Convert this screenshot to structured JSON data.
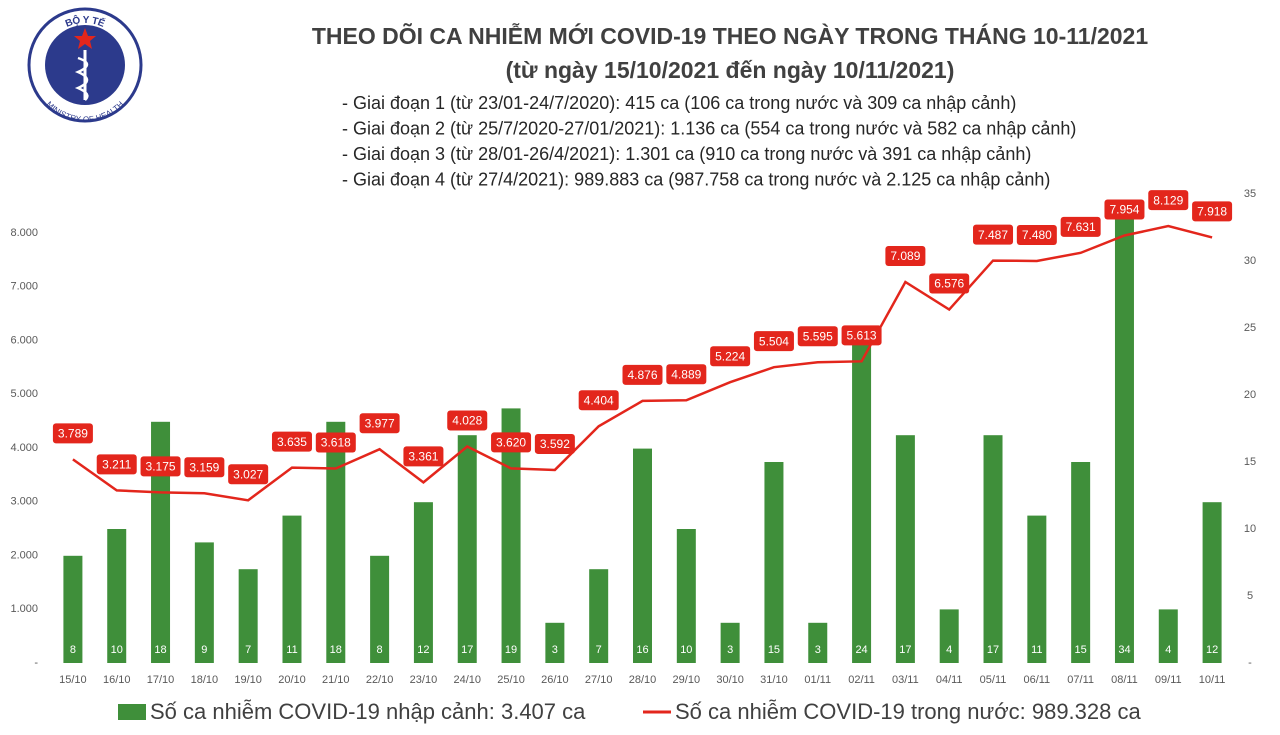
{
  "logo": {
    "top_text": "BỘ Y TẾ",
    "bottom_text": "MINISTRY OF HEALTH"
  },
  "chart_data": {
    "type": "combo",
    "title": "THEO DÕI CA NHIỄM MỚI COVID-19 THEO NGÀY TRONG THÁNG 10-11/2021",
    "subtitle": "(từ ngày 15/10/2021 đến ngày 10/11/2021)",
    "notes": [
      "- Giai đoạn 1 (từ 23/01-24/7/2020): 415 ca (106 ca trong nước và 309 ca nhập cảnh)",
      "- Giai đoạn 2 (từ 25/7/2020-27/01/2021): 1.136 ca (554 ca trong nước và 582 ca nhập cảnh)",
      "- Giai đoạn 3 (từ 28/01-26/4/2021): 1.301 ca (910 ca trong nước và 391 ca nhập cảnh)",
      "- Giai đoạn 4 (từ 27/4/2021): 989.883 ca (987.758 ca trong nước và 2.125 ca nhập cảnh)"
    ],
    "categories": [
      "15/10",
      "16/10",
      "17/10",
      "18/10",
      "19/10",
      "20/10",
      "21/10",
      "22/10",
      "23/10",
      "24/10",
      "25/10",
      "26/10",
      "27/10",
      "28/10",
      "29/10",
      "30/10",
      "31/10",
      "01/11",
      "02/11",
      "03/11",
      "04/11",
      "05/11",
      "06/11",
      "07/11",
      "08/11",
      "09/11",
      "10/11"
    ],
    "series": [
      {
        "name": "Số ca nhiễm COVID-19 nhập cảnh: 3.407 ca",
        "type": "bar",
        "axis": "y2",
        "color": "#3f8f3a",
        "values": [
          8,
          10,
          18,
          9,
          7,
          11,
          18,
          8,
          12,
          17,
          19,
          3,
          7,
          16,
          10,
          3,
          15,
          3,
          24,
          17,
          4,
          17,
          11,
          15,
          34,
          4,
          12
        ]
      },
      {
        "name": "Số ca nhiễm COVID-19 trong nước: 989.328 ca",
        "type": "line",
        "color": "#e3261c",
        "values": [
          3789,
          3211,
          3175,
          3159,
          3027,
          3635,
          3618,
          3977,
          3361,
          4028,
          3620,
          3592,
          4404,
          4876,
          4889,
          5224,
          5504,
          5595,
          5613,
          7089,
          6576,
          7487,
          7480,
          7631,
          7954,
          8129,
          7918
        ],
        "value_labels": [
          "3.789",
          "3.211",
          "3.175",
          "3.159",
          "3.027",
          "3.635",
          "3.618",
          "3.977",
          "3.361",
          "4.028",
          "3.620",
          "3.592",
          "4.404",
          "4.876",
          "4.889",
          "5.224",
          "5.504",
          "5.595",
          "5.613",
          "7.089",
          "6.576",
          "7.487",
          "7.480",
          "7.631",
          "7.954",
          "8.129",
          "7.918"
        ]
      }
    ],
    "ylim": [
      0,
      8726
    ],
    "yticks": [
      {
        "value": 0,
        "label": "-"
      },
      {
        "value": 1000,
        "label": "1.000"
      },
      {
        "value": 2000,
        "label": "2.000"
      },
      {
        "value": 3000,
        "label": "3.000"
      },
      {
        "value": 4000,
        "label": "4.000"
      },
      {
        "value": 5000,
        "label": "5.000"
      },
      {
        "value": 6000,
        "label": "6.000"
      },
      {
        "value": 7000,
        "label": "7.000"
      },
      {
        "value": 8000,
        "label": "8.000"
      }
    ],
    "y2lim": [
      0,
      35
    ],
    "y2ticks": [
      {
        "value": 0,
        "label": "-"
      },
      5,
      10,
      15,
      20,
      25,
      30,
      35
    ]
  }
}
